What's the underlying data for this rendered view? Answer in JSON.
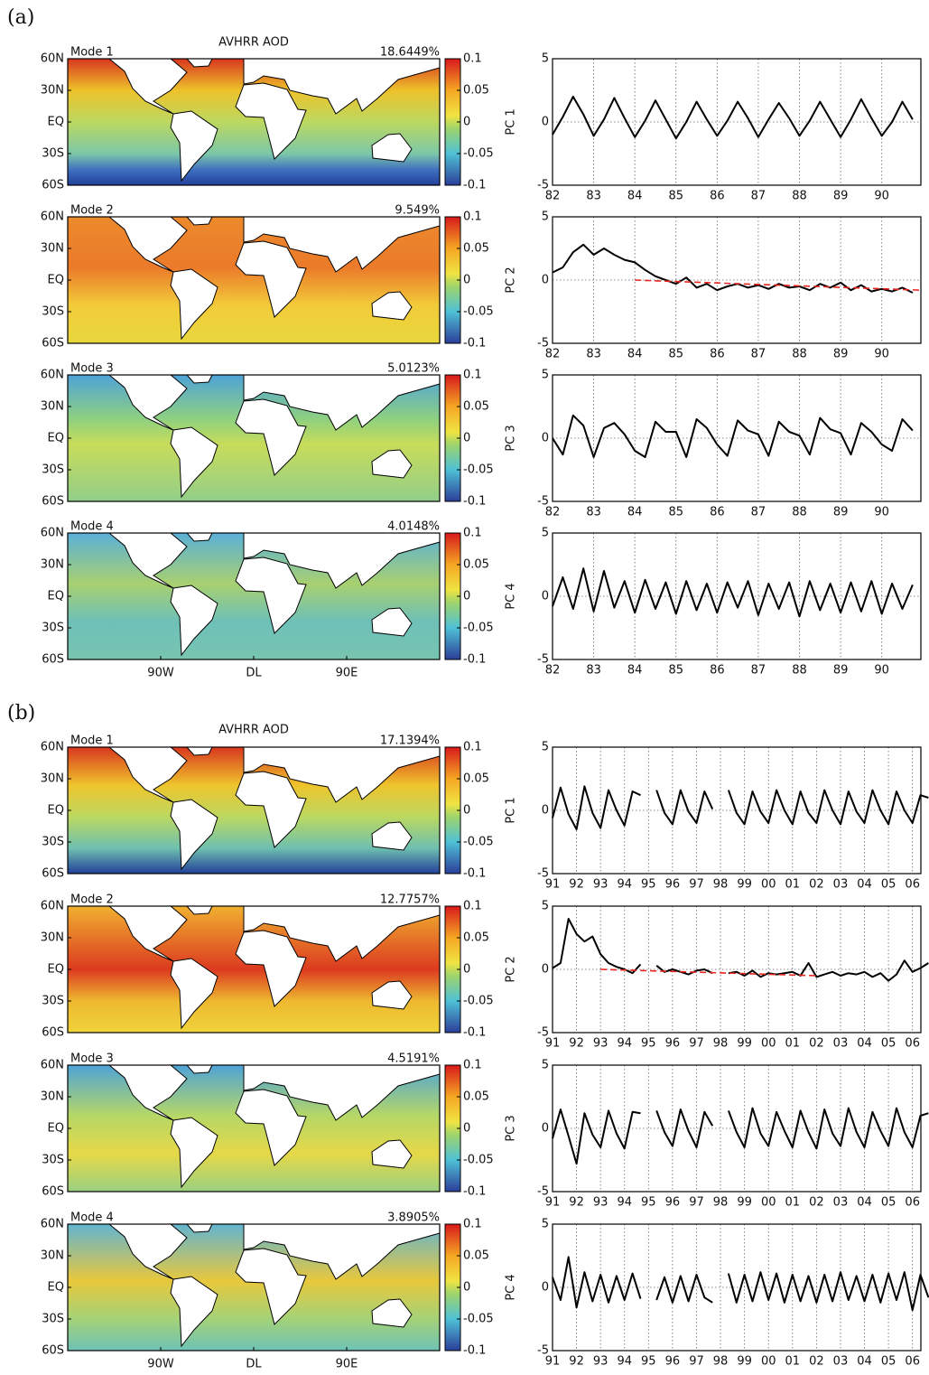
{
  "panels": [
    {
      "label": "(a)",
      "title": "AVHRR AOD",
      "lat_ticks": [
        {
          "value": 60,
          "label": "60N"
        },
        {
          "value": 30,
          "label": "30N"
        },
        {
          "value": 0,
          "label": "EQ"
        },
        {
          "value": -30,
          "label": "30S"
        },
        {
          "value": -60,
          "label": "60S"
        }
      ],
      "lon_ticks": [
        {
          "value": -90,
          "label": "90W"
        },
        {
          "value": 0,
          "label": "DL"
        },
        {
          "value": 90,
          "label": "90E"
        }
      ],
      "map_xlim": [
        -180,
        180
      ],
      "map_ylim": [
        -60,
        60
      ],
      "colorbar_lim": [
        -0.1,
        0.1
      ],
      "colorbar_ticks": [
        0.1,
        0.05,
        0,
        -0.05,
        -0.1
      ],
      "x": [
        1982,
        1982.25,
        1982.5,
        1982.75,
        1983,
        1983.25,
        1983.5,
        1983.75,
        1984,
        1984.25,
        1984.5,
        1984.75,
        1985,
        1985.25,
        1985.5,
        1985.75,
        1986,
        1986.25,
        1986.5,
        1986.75,
        1987,
        1987.25,
        1987.5,
        1987.75,
        1988,
        1988.25,
        1988.5,
        1988.75,
        1989,
        1989.25,
        1989.5,
        1989.75,
        1990,
        1990.25,
        1990.5,
        1990.75
      ],
      "xlim": [
        1982,
        1990.95
      ],
      "ylim": [
        -5,
        5
      ],
      "yticks": [
        5,
        0,
        -5
      ],
      "xticks": [
        {
          "value": 1982,
          "label": "82"
        },
        {
          "value": 1983,
          "label": "83"
        },
        {
          "value": 1984,
          "label": "84"
        },
        {
          "value": 1985,
          "label": "85"
        },
        {
          "value": 1986,
          "label": "86"
        },
        {
          "value": 1987,
          "label": "87"
        },
        {
          "value": 1988,
          "label": "88"
        },
        {
          "value": 1989,
          "label": "89"
        },
        {
          "value": 1990,
          "label": "90"
        }
      ],
      "grid": true,
      "line_color": "#000000",
      "trend_color": "#e8251f",
      "modes": [
        {
          "name": "Mode 1",
          "variance": "18.6449%",
          "ylabel": "PC 1",
          "type": "line",
          "values": [
            -1.0,
            0.4,
            2.0,
            0.6,
            -1.1,
            0.2,
            1.9,
            0.3,
            -1.2,
            0.1,
            1.7,
            0.2,
            -1.3,
            0.0,
            1.6,
            0.2,
            -1.1,
            0.1,
            1.6,
            0.3,
            -1.2,
            0.2,
            1.5,
            0.3,
            -1.1,
            0.1,
            1.6,
            0.2,
            -1.2,
            0.2,
            1.8,
            0.3,
            -1.1,
            0.0,
            1.6,
            0.2
          ]
        },
        {
          "name": "Mode 2",
          "variance": "9.549%",
          "ylabel": "PC 2",
          "type": "line",
          "values": [
            0.6,
            1.0,
            2.2,
            2.8,
            2.0,
            2.5,
            2.0,
            1.6,
            1.4,
            0.8,
            0.3,
            0.0,
            -0.3,
            0.2,
            -0.6,
            -0.3,
            -0.8,
            -0.5,
            -0.3,
            -0.6,
            -0.4,
            -0.7,
            -0.3,
            -0.6,
            -0.5,
            -0.8,
            -0.3,
            -0.6,
            -0.2,
            -0.8,
            -0.4,
            -0.9,
            -0.7,
            -0.9,
            -0.6,
            -1.0
          ],
          "trend": {
            "x": [
              1984,
              1990.95
            ],
            "values": [
              0,
              -0.8
            ]
          }
        },
        {
          "name": "Mode 3",
          "variance": "5.0123%",
          "ylabel": "PC 3",
          "type": "line",
          "values": [
            0.0,
            -1.3,
            1.8,
            1.0,
            -1.5,
            0.8,
            1.2,
            0.3,
            -1.0,
            -1.5,
            1.3,
            0.5,
            0.5,
            -1.5,
            1.5,
            0.8,
            -0.5,
            -1.4,
            1.4,
            0.6,
            0.3,
            -1.4,
            1.3,
            0.5,
            0.2,
            -1.3,
            1.6,
            0.7,
            0.4,
            -1.3,
            1.2,
            0.5,
            -0.5,
            -1.0,
            1.5,
            0.6
          ]
        },
        {
          "name": "Mode 4",
          "variance": "4.0148%",
          "ylabel": "PC 4",
          "type": "line",
          "values": [
            -0.8,
            1.5,
            -1.0,
            2.2,
            -1.2,
            2.0,
            -0.9,
            1.2,
            -1.3,
            1.3,
            -1.0,
            1.1,
            -1.4,
            1.2,
            -1.1,
            1.0,
            -1.3,
            1.1,
            -0.9,
            1.2,
            -1.5,
            1.0,
            -1.0,
            1.1,
            -1.6,
            1.2,
            -1.1,
            1.0,
            -1.3,
            1.1,
            -1.2,
            1.2,
            -1.4,
            1.0,
            -1.0,
            0.9
          ]
        }
      ]
    },
    {
      "label": "(b)",
      "title": "AVHRR AOD",
      "lat_ticks": [
        {
          "value": 60,
          "label": "60N"
        },
        {
          "value": 30,
          "label": "30N"
        },
        {
          "value": 0,
          "label": "EQ"
        },
        {
          "value": -30,
          "label": "30S"
        },
        {
          "value": -60,
          "label": "60S"
        }
      ],
      "lon_ticks": [
        {
          "value": -90,
          "label": "90W"
        },
        {
          "value": 0,
          "label": "DL"
        },
        {
          "value": 90,
          "label": "90E"
        }
      ],
      "map_xlim": [
        -180,
        180
      ],
      "map_ylim": [
        -60,
        60
      ],
      "colorbar_lim": [
        -0.1,
        0.1
      ],
      "colorbar_ticks": [
        0.1,
        0.05,
        0,
        -0.05,
        -0.1
      ],
      "x": [
        1991,
        1991.333,
        1991.667,
        1992,
        1992.333,
        1992.667,
        1993,
        1993.333,
        1993.667,
        1994,
        1994.333,
        1994.667,
        1995,
        1995.333,
        1995.667,
        1996,
        1996.333,
        1996.667,
        1997,
        1997.333,
        1997.667,
        1998,
        1998.333,
        1998.667,
        1999,
        1999.333,
        1999.667,
        2000,
        2000.333,
        2000.667,
        2001,
        2001.333,
        2001.667,
        2002,
        2002.333,
        2002.667,
        2003,
        2003.333,
        2003.667,
        2004,
        2004.333,
        2004.667,
        2005,
        2005.333,
        2005.667,
        2006,
        2006.333,
        2006.667
      ],
      "xlim": [
        1991,
        2006.35
      ],
      "ylim": [
        -5,
        5
      ],
      "yticks": [
        5,
        0,
        -5
      ],
      "xticks": [
        {
          "value": 1991,
          "label": "91"
        },
        {
          "value": 1992,
          "label": "92"
        },
        {
          "value": 1993,
          "label": "93"
        },
        {
          "value": 1994,
          "label": "94"
        },
        {
          "value": 1995,
          "label": "95"
        },
        {
          "value": 1996,
          "label": "96"
        },
        {
          "value": 1997,
          "label": "97"
        },
        {
          "value": 1998,
          "label": "98"
        },
        {
          "value": 1999,
          "label": "99"
        },
        {
          "value": 2000,
          "label": "00"
        },
        {
          "value": 2001,
          "label": "01"
        },
        {
          "value": 2002,
          "label": "02"
        },
        {
          "value": 2003,
          "label": "03"
        },
        {
          "value": 2004,
          "label": "04"
        },
        {
          "value": 2005,
          "label": "05"
        },
        {
          "value": 2006,
          "label": "06"
        }
      ],
      "grid": true,
      "line_color": "#000000",
      "trend_color": "#e8251f",
      "modes": [
        {
          "name": "Mode 1",
          "variance": "17.1394%",
          "ylabel": "PC 1",
          "type": "line",
          "values": [
            -0.6,
            1.8,
            -0.3,
            -1.5,
            1.9,
            -0.2,
            -1.4,
            1.6,
            0.0,
            -1.2,
            1.5,
            1.2,
            null,
            1.6,
            -0.2,
            -1.1,
            1.6,
            -0.1,
            -1.0,
            1.5,
            0.1,
            null,
            1.6,
            -0.2,
            -1.1,
            1.5,
            -0.1,
            -1.0,
            1.6,
            0.0,
            -1.1,
            1.5,
            -0.2,
            -1.0,
            1.6,
            0.0,
            -1.1,
            1.5,
            -0.1,
            -1.0,
            1.6,
            0.0,
            -1.1,
            1.5,
            0.0,
            -1.0,
            1.2,
            1.0
          ]
        },
        {
          "name": "Mode 2",
          "variance": "12.7757%",
          "ylabel": "PC 2",
          "type": "line",
          "values": [
            0.1,
            0.5,
            4.0,
            2.8,
            2.2,
            2.6,
            1.2,
            0.5,
            0.2,
            0.0,
            -0.3,
            0.4,
            null,
            0.3,
            -0.2,
            0.0,
            -0.2,
            -0.4,
            -0.1,
            0.0,
            -0.3,
            null,
            -0.3,
            -0.2,
            -0.5,
            -0.1,
            -0.6,
            -0.3,
            -0.4,
            -0.3,
            -0.2,
            -0.5,
            0.5,
            -0.6,
            -0.4,
            -0.2,
            -0.5,
            -0.3,
            -0.4,
            -0.2,
            -0.6,
            -0.3,
            -0.9,
            -0.4,
            0.7,
            -0.2,
            0.1,
            0.5
          ],
          "trend": {
            "x": [
              1993,
              2002
            ],
            "values": [
              0,
              -0.5
            ]
          }
        },
        {
          "name": "Mode 3",
          "variance": "4.5191%",
          "ylabel": "PC 3",
          "type": "line",
          "values": [
            -0.8,
            1.5,
            -0.6,
            -2.8,
            1.2,
            -0.5,
            -1.5,
            1.4,
            -0.4,
            -1.6,
            1.3,
            1.2,
            null,
            1.4,
            -0.3,
            -1.4,
            1.5,
            -0.2,
            -1.5,
            1.3,
            0.2,
            null,
            1.4,
            -0.3,
            -1.5,
            1.6,
            -0.4,
            -1.4,
            1.3,
            -0.2,
            -1.5,
            1.4,
            -0.3,
            -1.6,
            1.5,
            -0.4,
            -1.4,
            1.6,
            -0.3,
            -1.5,
            1.3,
            -0.2,
            -1.4,
            1.6,
            -0.3,
            -1.5,
            1.0,
            1.2
          ]
        },
        {
          "name": "Mode 4",
          "variance": "3.8905%",
          "ylabel": "PC 4",
          "type": "line",
          "values": [
            0.8,
            -1.0,
            2.4,
            -1.6,
            1.2,
            -1.1,
            1.0,
            -1.2,
            0.9,
            -1.0,
            1.1,
            -0.9,
            null,
            -1.0,
            0.8,
            -1.2,
            0.9,
            -1.1,
            1.0,
            -0.8,
            -1.2,
            null,
            1.1,
            -1.2,
            1.0,
            -1.1,
            1.2,
            -1.0,
            1.1,
            -1.2,
            1.0,
            -1.1,
            0.9,
            -1.2,
            1.0,
            -1.1,
            1.2,
            -1.0,
            0.9,
            -1.1,
            1.0,
            -1.2,
            1.1,
            -1.0,
            1.2,
            -1.8,
            1.0,
            -0.8
          ]
        }
      ]
    }
  ]
}
